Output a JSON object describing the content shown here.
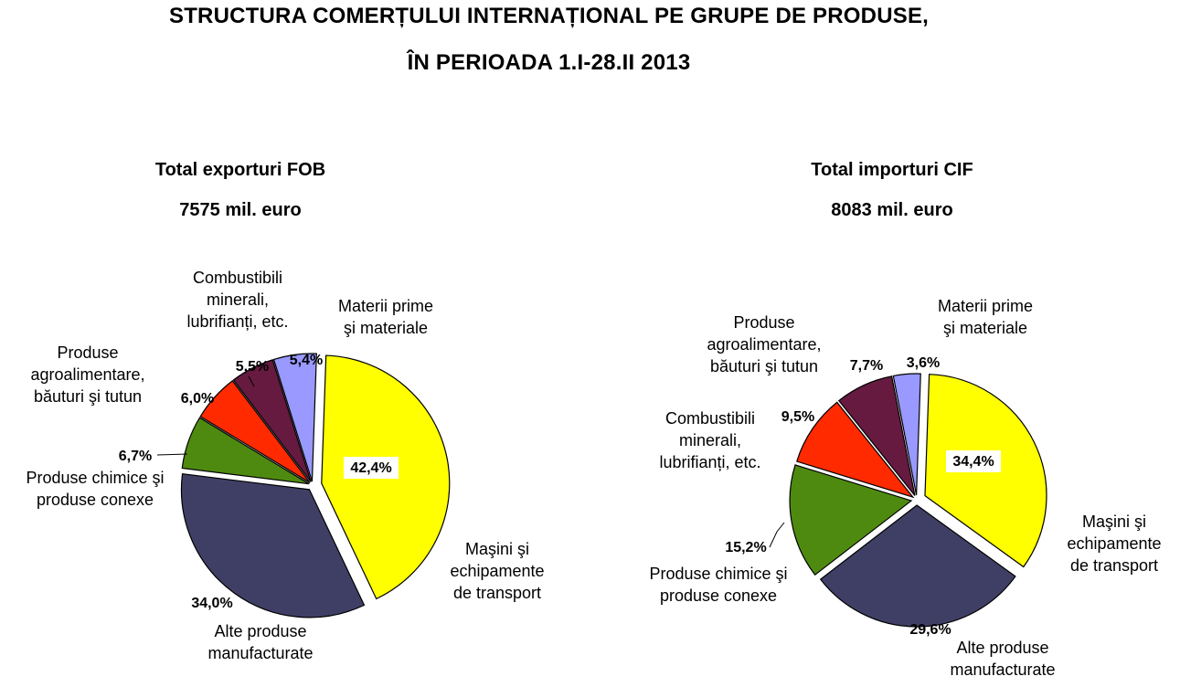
{
  "title_line1": "STRUCTURA COMERȚULUI INTERNAȚIONAL PE GRUPE DE PRODUSE,",
  "title_line2": "ÎN PERIOADA 1.I-28.II 2013",
  "chart_data": [
    {
      "type": "pie",
      "title": "Total exporturi FOB",
      "subtitle": "7575 mil. euro",
      "slices": [
        {
          "label": "Maşini şi echipamente de transport",
          "value": 42.4,
          "display": "42,4%",
          "color": "#ffff00"
        },
        {
          "label": "Alte produse manufacturate",
          "value": 34.0,
          "display": "34,0%",
          "color": "#3f3f66"
        },
        {
          "label": "Produse chimice şi produse conexe",
          "value": 6.7,
          "display": "6,7%",
          "color": "#4f8a10"
        },
        {
          "label": "Produse agroalimentare, băuturi şi tutun",
          "value": 6.0,
          "display": "6,0%",
          "color": "#ff2a00"
        },
        {
          "label": "Combustibili minerali, lubrifianți, etc.",
          "value": 5.5,
          "display": "5,5%",
          "color": "#661a40"
        },
        {
          "label": "Materii   prime şi materiale",
          "value": 5.4,
          "display": "5,4%",
          "color": "#9999ff"
        }
      ]
    },
    {
      "type": "pie",
      "title": "Total importuri  CIF",
      "subtitle": "8083 mil. euro",
      "slices": [
        {
          "label": "Maşini şi echipamente de transport",
          "value": 34.4,
          "display": "34,4%",
          "color": "#ffff00"
        },
        {
          "label": "Alte produse manufacturate",
          "value": 29.6,
          "display": "29,6%",
          "color": "#3f3f66"
        },
        {
          "label": "Produse chimice şi produse conexe",
          "value": 15.2,
          "display": "15,2%",
          "color": "#4f8a10"
        },
        {
          "label": "Combustibili minerali, lubrifianți, etc.",
          "value": 9.5,
          "display": "9,5%",
          "color": "#ff2a00"
        },
        {
          "label": "Produse agroalimentare, băuturi şi tutun",
          "value": 7.7,
          "display": "7,7%",
          "color": "#661a40"
        },
        {
          "label": "Materii prime şi materiale",
          "value": 3.6,
          "display": "3,6%",
          "color": "#9999ff"
        }
      ]
    }
  ]
}
